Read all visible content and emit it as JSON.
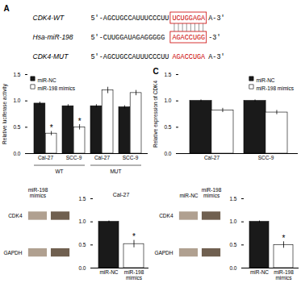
{
  "chart_data": [
    {
      "type": "sequence",
      "title": "A",
      "color": "#cc0000",
      "categories": [
        "CDK4-WT",
        "Hsa-miR-198",
        "CDK4-MUT"
      ],
      "annotations": [
        {
          "prefix": "5'-AGCUGCCAUUUCCCUU",
          "highlight": "UCUGGAGA",
          "suffix": "A-3'",
          "boxed": true
        },
        {
          "prefix": "5'-CUUGGAUAGAGGGGG",
          "highlight": "AGACCUGG",
          "suffix": "-3'",
          "boxed": true
        },
        {
          "prefix": "5'-AGCUGCCAUUUCCCUU",
          "highlight": "AGACCUGA",
          "suffix": "A-3'",
          "boxed": false
        }
      ]
    },
    {
      "type": "bar",
      "categories": [
        "Cal-27",
        "SCC-9",
        "Cal-27",
        "SCC-9"
      ],
      "group_labels": [
        "WT",
        "MUT"
      ],
      "series": [
        {
          "name": "miR-NC",
          "color": "#1a1a1a",
          "values": [
            0.95,
            0.9,
            0.9,
            0.88
          ],
          "errors": [
            0.03,
            0.03,
            0.03,
            0.03
          ]
        },
        {
          "name": "miR-198 mimics",
          "color": "#ffffff",
          "values": [
            0.38,
            0.5,
            1.2,
            1.15
          ],
          "errors": [
            0.04,
            0.05,
            0.06,
            0.05
          ]
        }
      ],
      "annotations": [
        {
          "text": "*",
          "series": "miR-198 mimics",
          "index": 0
        },
        {
          "text": "*",
          "series": "miR-198 mimics",
          "index": 1
        }
      ],
      "ylabel": "Relative luciferase activity",
      "ylim": [
        0,
        1.5
      ],
      "yticks": [
        {
          "value": 0,
          "label": "0.0"
        },
        0.5,
        {
          "value": 1,
          "label": "1.0"
        },
        1.5
      ],
      "legend": "upper left"
    },
    {
      "type": "bar",
      "title": "C",
      "categories": [
        "Cal-27",
        "SCC-9"
      ],
      "series": [
        {
          "name": "miR-NC",
          "color": "#1a1a1a",
          "values": [
            1.0,
            1.0
          ],
          "errors": [
            0.02,
            0.02
          ]
        },
        {
          "name": "miR-198 mimics",
          "color": "#ffffff",
          "values": [
            0.82,
            0.78
          ],
          "errors": [
            0.04,
            0.04
          ]
        }
      ],
      "ylabel": "Relative expression of CDK4",
      "ylim": [
        0,
        1.5
      ],
      "yticks": [
        {
          "value": 0,
          "label": "0.0"
        },
        0.5,
        {
          "value": 1,
          "label": "1.0"
        },
        1.5
      ],
      "legend": "upper right"
    },
    {
      "type": "blot",
      "categories": [
        "miR-198\nmimics",
        null
      ],
      "colors": [
        "#b0a090",
        "#706050"
      ],
      "annotations": [
        "CDK4",
        "GAPDH"
      ]
    },
    {
      "type": "bar",
      "title": "Cal-27",
      "categories": [
        "miR-NC",
        "miR-198\nmimics"
      ],
      "values": [
        1.0,
        0.52
      ],
      "errors": [
        0.02,
        0.08
      ],
      "colors": [
        "#1a1a1a",
        "#ffffff"
      ],
      "annotations": [
        {
          "text": "*",
          "index": 1
        }
      ],
      "ylim": [
        0,
        1.5
      ],
      "yticks": [
        {
          "value": 0,
          "label": "0.0"
        },
        0.5,
        {
          "value": 1,
          "label": "1.0"
        },
        1.5
      ]
    },
    {
      "type": "blot",
      "categories": [
        "miR-NC",
        "miR-198\nmimics"
      ],
      "colors": [
        "#b0a090",
        "#706050"
      ],
      "annotations": [
        "CDK4",
        "GAPDH"
      ]
    },
    {
      "type": "bar",
      "categories": [
        "miR-NC",
        "miR-198\nmimics"
      ],
      "values": [
        1.0,
        0.5
      ],
      "errors": [
        0.02,
        0.07
      ],
      "colors": [
        "#1a1a1a",
        "#ffffff"
      ],
      "annotations": [
        {
          "text": "*",
          "index": 1
        }
      ],
      "ylim": [
        0,
        1.5
      ],
      "yticks": [
        {
          "value": 0,
          "label": "0.0"
        },
        0.5,
        {
          "value": 1,
          "label": "1.0"
        },
        1.5
      ]
    }
  ]
}
